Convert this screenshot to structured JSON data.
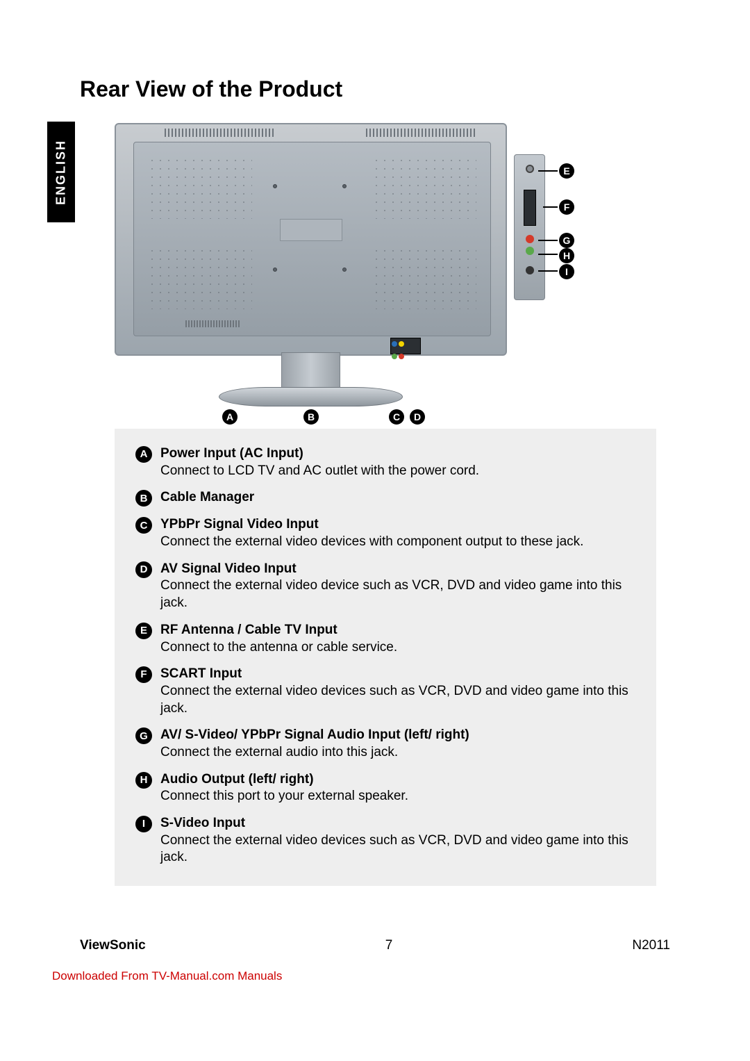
{
  "page": {
    "title": "Rear View of the Product",
    "language_tab": "ENGLISH"
  },
  "callouts": {
    "bottom": [
      "A",
      "B",
      "C",
      "D"
    ],
    "side": [
      "E",
      "F",
      "G",
      "H",
      "I"
    ]
  },
  "items": [
    {
      "letter": "A",
      "title": "Power Input (AC Input)",
      "desc": "Connect to LCD TV and AC outlet with the power cord."
    },
    {
      "letter": "B",
      "title": "Cable Manager",
      "desc": ""
    },
    {
      "letter": "C",
      "title": "YPbPr Signal Video Input",
      "desc": "Connect the external video devices with component output to these jack."
    },
    {
      "letter": "D",
      "title": "AV Signal Video Input",
      "desc": "Connect the external video device such as VCR, DVD and video game into this jack."
    },
    {
      "letter": "E",
      "title": "RF Antenna / Cable TV Input",
      "desc": "Connect to the antenna or cable service."
    },
    {
      "letter": "F",
      "title": "SCART Input",
      "desc": "Connect the external video devices such as VCR, DVD and video game into this jack."
    },
    {
      "letter": "G",
      "title": "AV/ S-Video/ YPbPr Signal Audio Input (left/ right)",
      "desc": "Connect the external audio into this jack."
    },
    {
      "letter": "H",
      "title": "Audio Output (left/ right)",
      "desc": "Connect this port to your external speaker."
    },
    {
      "letter": "I",
      "title": "S-Video Input",
      "desc": "Connect the external video devices such as VCR, DVD and video game into this jack."
    }
  ],
  "footer": {
    "brand": "ViewSonic",
    "page_number": "7",
    "model": "N2011"
  },
  "download_note": "Downloaded From TV-Manual.com Manuals",
  "colors": {
    "page_bg": "#ffffff",
    "text": "#000000",
    "box_bg": "#eeeeee",
    "tab_bg": "#000000",
    "tab_text": "#ffffff",
    "link": "#cc0000",
    "rca_yellow": "#f4d400",
    "rca_red": "#d43a2a",
    "rca_green": "#5aa84a",
    "rca_blue": "#2a6fb8"
  }
}
